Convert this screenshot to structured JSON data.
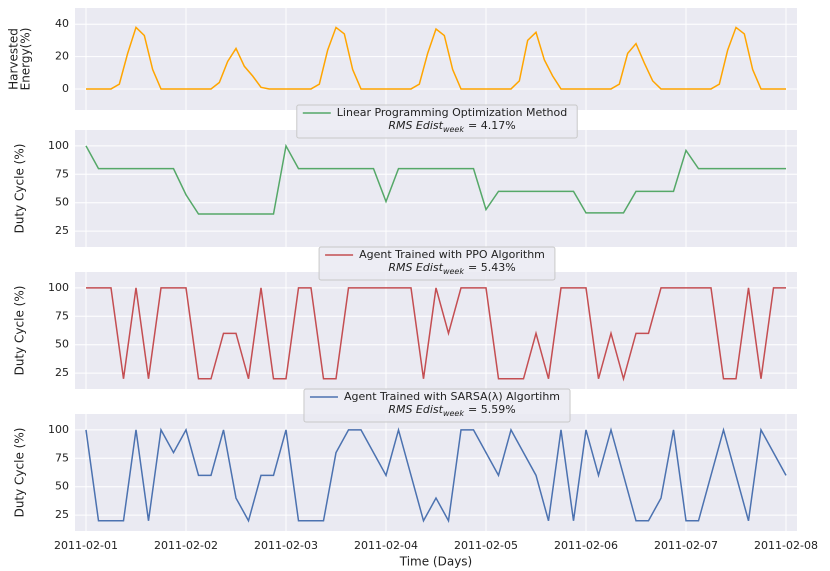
{
  "chart_data": [
    {
      "type": "line",
      "ylabel": [
        "Harvested",
        "Energy(%)"
      ],
      "x": [
        0,
        2,
        4,
        6,
        8,
        10,
        12,
        14,
        16,
        18,
        20,
        22,
        24,
        26,
        28,
        30,
        32,
        34,
        36,
        38,
        40,
        42,
        44,
        46,
        48,
        50,
        52,
        54,
        56,
        58,
        60,
        62,
        64,
        66,
        68,
        70,
        72,
        74,
        76,
        78,
        80,
        82,
        84,
        86,
        88,
        90,
        92,
        94,
        96,
        98,
        100,
        102,
        104,
        106,
        108,
        110,
        112,
        114,
        116,
        118,
        120,
        122,
        124,
        126,
        128,
        130,
        132,
        134,
        136,
        138,
        140,
        142,
        144,
        146,
        148,
        150,
        152,
        154,
        156,
        158,
        160,
        162,
        164,
        166,
        168
      ],
      "series": [
        {
          "color": "#ffa500",
          "values": [
            0,
            0,
            0,
            0,
            3,
            22,
            38,
            33,
            12,
            0,
            0,
            0,
            0,
            0,
            0,
            0,
            4,
            17,
            25,
            14,
            8,
            1,
            0,
            0,
            0,
            0,
            0,
            0,
            3,
            24,
            38,
            34,
            12,
            0,
            0,
            0,
            0,
            0,
            0,
            0,
            3,
            22,
            37,
            33,
            12,
            0,
            0,
            0,
            0,
            0,
            0,
            0,
            5,
            30,
            35,
            18,
            8,
            0,
            0,
            0,
            0,
            0,
            0,
            0,
            3,
            22,
            28,
            16,
            5,
            0,
            0,
            0,
            0,
            0,
            0,
            0,
            3,
            24,
            38,
            34,
            12,
            0,
            0,
            0,
            0
          ]
        }
      ],
      "xlim": [
        -2.64,
        170.64
      ],
      "xticks": [
        0,
        24,
        48,
        72,
        96,
        120,
        144,
        168
      ],
      "ylim": [
        -13,
        50
      ],
      "yticks": [
        0,
        20,
        40
      ],
      "grid": true
    },
    {
      "type": "line",
      "ylabel": [
        "Duty Cycle (%)"
      ],
      "x": [
        0,
        3,
        6,
        9,
        12,
        15,
        18,
        21,
        24,
        27,
        30,
        33,
        36,
        39,
        42,
        45,
        48,
        51,
        54,
        57,
        60,
        63,
        66,
        69,
        72,
        75,
        78,
        81,
        84,
        87,
        90,
        93,
        96,
        99,
        102,
        105,
        108,
        111,
        114,
        117,
        120,
        123,
        126,
        129,
        132,
        135,
        138,
        141,
        144,
        147,
        150,
        153,
        156,
        159,
        162,
        165,
        168
      ],
      "series": [
        {
          "name": "Linear Programming Optimization Method",
          "color": "#55a868",
          "values": [
            100,
            80,
            80,
            80,
            80,
            80,
            80,
            80,
            57,
            40,
            40,
            40,
            40,
            40,
            40,
            40,
            100,
            80,
            80,
            80,
            80,
            80,
            80,
            80,
            51,
            80,
            80,
            80,
            80,
            80,
            80,
            80,
            44,
            60,
            60,
            60,
            60,
            60,
            60,
            60,
            41,
            41,
            41,
            41,
            60,
            60,
            60,
            60,
            96,
            80,
            80,
            80,
            80,
            80,
            80,
            80,
            80
          ]
        }
      ],
      "annotation": {
        "text": "RMS Edist",
        "subscript": "week",
        "value": "= 4.17%"
      },
      "legend": "upper center",
      "xlim": [
        -2.64,
        170.64
      ],
      "xticks": [
        0,
        24,
        48,
        72,
        96,
        120,
        144,
        168
      ],
      "ylim": [
        11,
        114
      ],
      "yticks": [
        25,
        50,
        75,
        100
      ],
      "grid": true
    },
    {
      "type": "line",
      "ylabel": [
        "Duty Cycle (%)"
      ],
      "x": [
        0,
        3,
        6,
        9,
        12,
        15,
        18,
        21,
        24,
        27,
        30,
        33,
        36,
        39,
        42,
        45,
        48,
        51,
        54,
        57,
        60,
        63,
        66,
        69,
        72,
        75,
        78,
        81,
        84,
        87,
        90,
        93,
        96,
        99,
        102,
        105,
        108,
        111,
        114,
        117,
        120,
        123,
        126,
        129,
        132,
        135,
        138,
        141,
        144,
        147,
        150,
        153,
        156,
        159,
        162,
        165,
        168
      ],
      "series": [
        {
          "name": "Agent Trained with PPO Algorithm",
          "color": "#c44e52",
          "values": [
            100,
            100,
            100,
            20,
            100,
            20,
            100,
            100,
            100,
            20,
            20,
            60,
            60,
            20,
            100,
            20,
            20,
            100,
            100,
            20,
            20,
            100,
            100,
            100,
            100,
            100,
            100,
            20,
            100,
            60,
            100,
            100,
            100,
            20,
            20,
            20,
            60,
            20,
            100,
            100,
            100,
            20,
            60,
            20,
            60,
            60,
            100,
            100,
            100,
            100,
            100,
            20,
            20,
            100,
            20,
            100,
            100
          ]
        }
      ],
      "annotation": {
        "text": "RMS Edist",
        "subscript": "week",
        "value": "= 5.43%"
      },
      "legend": "upper center",
      "xlim": [
        -2.64,
        170.64
      ],
      "xticks": [
        0,
        24,
        48,
        72,
        96,
        120,
        144,
        168
      ],
      "ylim": [
        11,
        114
      ],
      "yticks": [
        25,
        50,
        75,
        100
      ],
      "grid": true
    },
    {
      "type": "line",
      "ylabel": [
        "Duty Cycle (%)"
      ],
      "xlabel": "Time (Days)",
      "x": [
        0,
        3,
        6,
        9,
        12,
        15,
        18,
        21,
        24,
        27,
        30,
        33,
        36,
        39,
        42,
        45,
        48,
        51,
        54,
        57,
        60,
        63,
        66,
        69,
        72,
        75,
        78,
        81,
        84,
        87,
        90,
        93,
        96,
        99,
        102,
        105,
        108,
        111,
        114,
        117,
        120,
        123,
        126,
        129,
        132,
        135,
        138,
        141,
        144,
        147,
        150,
        153,
        156,
        159,
        162,
        165,
        168
      ],
      "series": [
        {
          "name": "Agent Trained with SARSA(λ) Algortihm",
          "color": "#4c72b0",
          "values": [
            100,
            20,
            20,
            20,
            100,
            20,
            100,
            80,
            100,
            60,
            60,
            100,
            40,
            20,
            60,
            60,
            100,
            20,
            20,
            20,
            80,
            100,
            100,
            80,
            60,
            100,
            60,
            20,
            40,
            20,
            100,
            100,
            80,
            60,
            100,
            80,
            60,
            20,
            100,
            20,
            100,
            60,
            100,
            60,
            20,
            20,
            40,
            100,
            20,
            20,
            60,
            100,
            60,
            20,
            100,
            80,
            60
          ]
        }
      ],
      "annotation": {
        "text": "RMS Edist",
        "subscript": "week",
        "value": "= 5.59%"
      },
      "legend": "upper center",
      "xlim": [
        -2.64,
        170.64
      ],
      "xticks": [
        {
          "value": 0,
          "label": "2011-02-01"
        },
        {
          "value": 24,
          "label": "2011-02-02"
        },
        {
          "value": 48,
          "label": "2011-02-03"
        },
        {
          "value": 72,
          "label": "2011-02-04"
        },
        {
          "value": 96,
          "label": "2011-02-05"
        },
        {
          "value": 120,
          "label": "2011-02-06"
        },
        {
          "value": 144,
          "label": "2011-02-07"
        },
        {
          "value": 168,
          "label": "2011-02-08"
        }
      ],
      "ylim": [
        11,
        114
      ],
      "yticks": [
        25,
        50,
        75,
        100
      ],
      "grid": true
    }
  ]
}
